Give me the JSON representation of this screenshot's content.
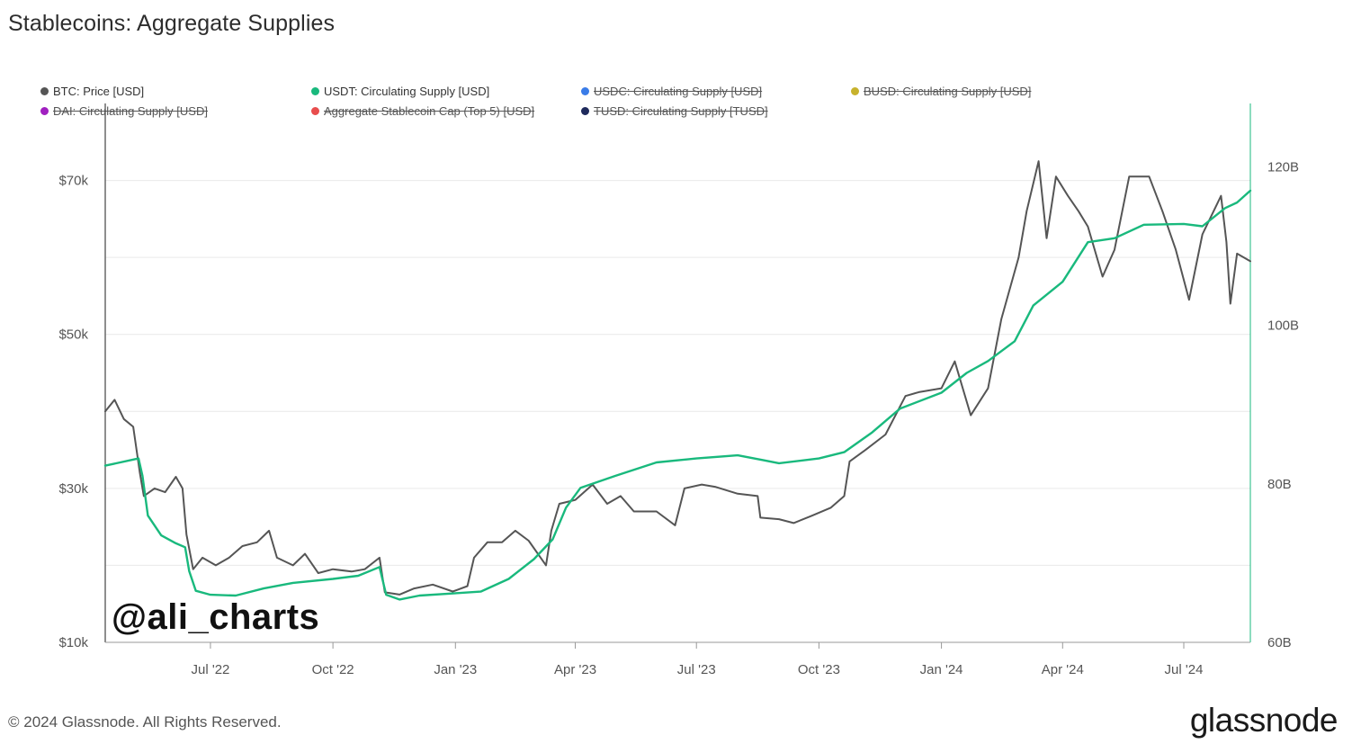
{
  "header": {
    "title": "Stablecoins: Aggregate Supplies"
  },
  "watermark": "@ali_charts",
  "footer": {
    "copyright": "© 2024 Glassnode. All Rights Reserved.",
    "brand": "glassnode"
  },
  "colors": {
    "btc": "#555555",
    "usdt": "#19b97d",
    "usdc": "#3a7ce8",
    "busd": "#c7b22d",
    "dai": "#a020c0",
    "agg": "#e84d4d",
    "tusd": "#1f2a5c",
    "grid": "#e9e9e9",
    "axis": "#444444"
  },
  "chart_data": {
    "type": "line",
    "title": "Stablecoins: Aggregate Supplies",
    "legend": [
      {
        "name": "BTC: Price [USD]",
        "color": "#555555",
        "enabled": true
      },
      {
        "name": "USDT: Circulating Supply [USD]",
        "color": "#19b97d",
        "enabled": true
      },
      {
        "name": "USDC: Circulating Supply [USD]",
        "color": "#3a7ce8",
        "enabled": false
      },
      {
        "name": "BUSD: Circulating Supply [USD]",
        "color": "#c7b22d",
        "enabled": false
      },
      {
        "name": "DAI: Circulating Supply [USD]",
        "color": "#a020c0",
        "enabled": false
      },
      {
        "name": "Aggregate Stablecoin Cap (Top 5) [USD]",
        "color": "#e84d4d",
        "enabled": false
      },
      {
        "name": "TUSD: Circulating Supply [TUSD]",
        "color": "#1f2a5c",
        "enabled": false
      }
    ],
    "x_ticks": [
      "Jul '22",
      "Oct '22",
      "Jan '23",
      "Apr '23",
      "Jul '23",
      "Oct '23",
      "Jan '24",
      "Apr '24",
      "Jul '24"
    ],
    "x_tick_dates": [
      "2022-07-01",
      "2022-10-01",
      "2023-01-01",
      "2023-04-01",
      "2023-07-01",
      "2023-10-01",
      "2024-01-01",
      "2024-04-01",
      "2024-07-01"
    ],
    "x_range": [
      "2022-04-13",
      "2024-08-20"
    ],
    "y_left": {
      "label": "",
      "ticks": [
        "$10k",
        "$30k",
        "$50k",
        "$70k"
      ],
      "tick_values": [
        10000,
        30000,
        50000,
        70000
      ],
      "range": [
        10000,
        80000
      ]
    },
    "y_right": {
      "label": "",
      "ticks": [
        "60B",
        "80B",
        "100B",
        "120B"
      ],
      "tick_values": [
        60,
        80,
        100,
        120
      ],
      "range": [
        60,
        128
      ]
    },
    "grid": true,
    "legend_position": "top",
    "series": [
      {
        "name": "BTC: Price [USD]",
        "axis": "left",
        "points": [
          [
            "2022-04-13",
            40000
          ],
          [
            "2022-04-20",
            41500
          ],
          [
            "2022-04-27",
            39000
          ],
          [
            "2022-05-04",
            38000
          ],
          [
            "2022-05-09",
            32000
          ],
          [
            "2022-05-12",
            29000
          ],
          [
            "2022-05-20",
            30000
          ],
          [
            "2022-05-28",
            29500
          ],
          [
            "2022-06-05",
            31500
          ],
          [
            "2022-06-10",
            30000
          ],
          [
            "2022-06-13",
            24000
          ],
          [
            "2022-06-18",
            19500
          ],
          [
            "2022-06-25",
            21000
          ],
          [
            "2022-07-05",
            20000
          ],
          [
            "2022-07-15",
            21000
          ],
          [
            "2022-07-25",
            22500
          ],
          [
            "2022-08-05",
            23000
          ],
          [
            "2022-08-14",
            24500
          ],
          [
            "2022-08-20",
            21000
          ],
          [
            "2022-09-01",
            20000
          ],
          [
            "2022-09-10",
            21500
          ],
          [
            "2022-09-20",
            19000
          ],
          [
            "2022-10-01",
            19500
          ],
          [
            "2022-10-15",
            19200
          ],
          [
            "2022-10-25",
            19500
          ],
          [
            "2022-11-05",
            21000
          ],
          [
            "2022-11-09",
            16500
          ],
          [
            "2022-11-20",
            16200
          ],
          [
            "2022-12-01",
            17000
          ],
          [
            "2022-12-15",
            17500
          ],
          [
            "2022-12-30",
            16600
          ],
          [
            "2023-01-10",
            17300
          ],
          [
            "2023-01-15",
            21000
          ],
          [
            "2023-01-25",
            23000
          ],
          [
            "2023-02-05",
            23000
          ],
          [
            "2023-02-15",
            24500
          ],
          [
            "2023-02-25",
            23200
          ],
          [
            "2023-03-10",
            20000
          ],
          [
            "2023-03-14",
            24500
          ],
          [
            "2023-03-20",
            28000
          ],
          [
            "2023-04-01",
            28500
          ],
          [
            "2023-04-14",
            30500
          ],
          [
            "2023-04-25",
            28000
          ],
          [
            "2023-05-05",
            29000
          ],
          [
            "2023-05-15",
            27000
          ],
          [
            "2023-06-01",
            27000
          ],
          [
            "2023-06-15",
            25200
          ],
          [
            "2023-06-22",
            30000
          ],
          [
            "2023-07-05",
            30500
          ],
          [
            "2023-07-15",
            30200
          ],
          [
            "2023-08-01",
            29300
          ],
          [
            "2023-08-16",
            29000
          ],
          [
            "2023-08-18",
            26200
          ],
          [
            "2023-09-01",
            26000
          ],
          [
            "2023-09-12",
            25500
          ],
          [
            "2023-09-25",
            26400
          ],
          [
            "2023-10-10",
            27500
          ],
          [
            "2023-10-20",
            29000
          ],
          [
            "2023-10-24",
            33500
          ],
          [
            "2023-11-05",
            35000
          ],
          [
            "2023-11-20",
            37000
          ],
          [
            "2023-12-05",
            42000
          ],
          [
            "2023-12-15",
            42500
          ],
          [
            "2024-01-01",
            43000
          ],
          [
            "2024-01-11",
            46500
          ],
          [
            "2024-01-23",
            39500
          ],
          [
            "2024-02-05",
            43000
          ],
          [
            "2024-02-15",
            52000
          ],
          [
            "2024-02-28",
            60000
          ],
          [
            "2024-03-05",
            66000
          ],
          [
            "2024-03-14",
            72500
          ],
          [
            "2024-03-20",
            62500
          ],
          [
            "2024-03-27",
            70500
          ],
          [
            "2024-04-05",
            68000
          ],
          [
            "2024-04-13",
            66000
          ],
          [
            "2024-04-20",
            64000
          ],
          [
            "2024-05-01",
            57500
          ],
          [
            "2024-05-10",
            61000
          ],
          [
            "2024-05-21",
            70500
          ],
          [
            "2024-06-05",
            70500
          ],
          [
            "2024-06-15",
            66000
          ],
          [
            "2024-06-25",
            61000
          ],
          [
            "2024-07-05",
            54500
          ],
          [
            "2024-07-15",
            63000
          ],
          [
            "2024-07-29",
            68000
          ],
          [
            "2024-08-02",
            62000
          ],
          [
            "2024-08-05",
            54000
          ],
          [
            "2024-08-10",
            60500
          ],
          [
            "2024-08-20",
            59500
          ]
        ]
      },
      {
        "name": "USDT: Circulating Supply [USD]",
        "axis": "right",
        "points": [
          [
            "2022-04-13",
            82.3
          ],
          [
            "2022-05-08",
            83.2
          ],
          [
            "2022-05-11",
            81.0
          ],
          [
            "2022-05-15",
            76.0
          ],
          [
            "2022-05-25",
            73.5
          ],
          [
            "2022-06-05",
            72.5
          ],
          [
            "2022-06-12",
            72.0
          ],
          [
            "2022-06-15",
            69.0
          ],
          [
            "2022-06-20",
            66.5
          ],
          [
            "2022-07-01",
            66.0
          ],
          [
            "2022-07-20",
            65.9
          ],
          [
            "2022-08-10",
            66.8
          ],
          [
            "2022-09-01",
            67.5
          ],
          [
            "2022-10-01",
            68.0
          ],
          [
            "2022-10-20",
            68.4
          ],
          [
            "2022-11-05",
            69.5
          ],
          [
            "2022-11-10",
            66.0
          ],
          [
            "2022-11-20",
            65.4
          ],
          [
            "2022-12-05",
            65.9
          ],
          [
            "2023-01-01",
            66.2
          ],
          [
            "2023-01-20",
            66.4
          ],
          [
            "2023-02-10",
            68.0
          ],
          [
            "2023-03-01",
            70.5
          ],
          [
            "2023-03-15",
            73.0
          ],
          [
            "2023-03-25",
            77.0
          ],
          [
            "2023-04-05",
            79.5
          ],
          [
            "2023-05-01",
            81.0
          ],
          [
            "2023-06-01",
            82.7
          ],
          [
            "2023-07-01",
            83.2
          ],
          [
            "2023-08-01",
            83.6
          ],
          [
            "2023-08-20",
            83.0
          ],
          [
            "2023-09-01",
            82.6
          ],
          [
            "2023-10-01",
            83.2
          ],
          [
            "2023-10-20",
            84.0
          ],
          [
            "2023-11-10",
            86.5
          ],
          [
            "2023-12-01",
            89.5
          ],
          [
            "2024-01-01",
            91.5
          ],
          [
            "2024-01-20",
            94.0
          ],
          [
            "2024-02-05",
            95.5
          ],
          [
            "2024-02-25",
            98.0
          ],
          [
            "2024-03-10",
            102.5
          ],
          [
            "2024-04-01",
            105.5
          ],
          [
            "2024-04-20",
            110.5
          ],
          [
            "2024-05-10",
            111.0
          ],
          [
            "2024-06-01",
            112.7
          ],
          [
            "2024-07-01",
            112.8
          ],
          [
            "2024-07-15",
            112.5
          ],
          [
            "2024-08-01",
            114.8
          ],
          [
            "2024-08-10",
            115.5
          ],
          [
            "2024-08-20",
            117.0
          ]
        ]
      }
    ]
  }
}
